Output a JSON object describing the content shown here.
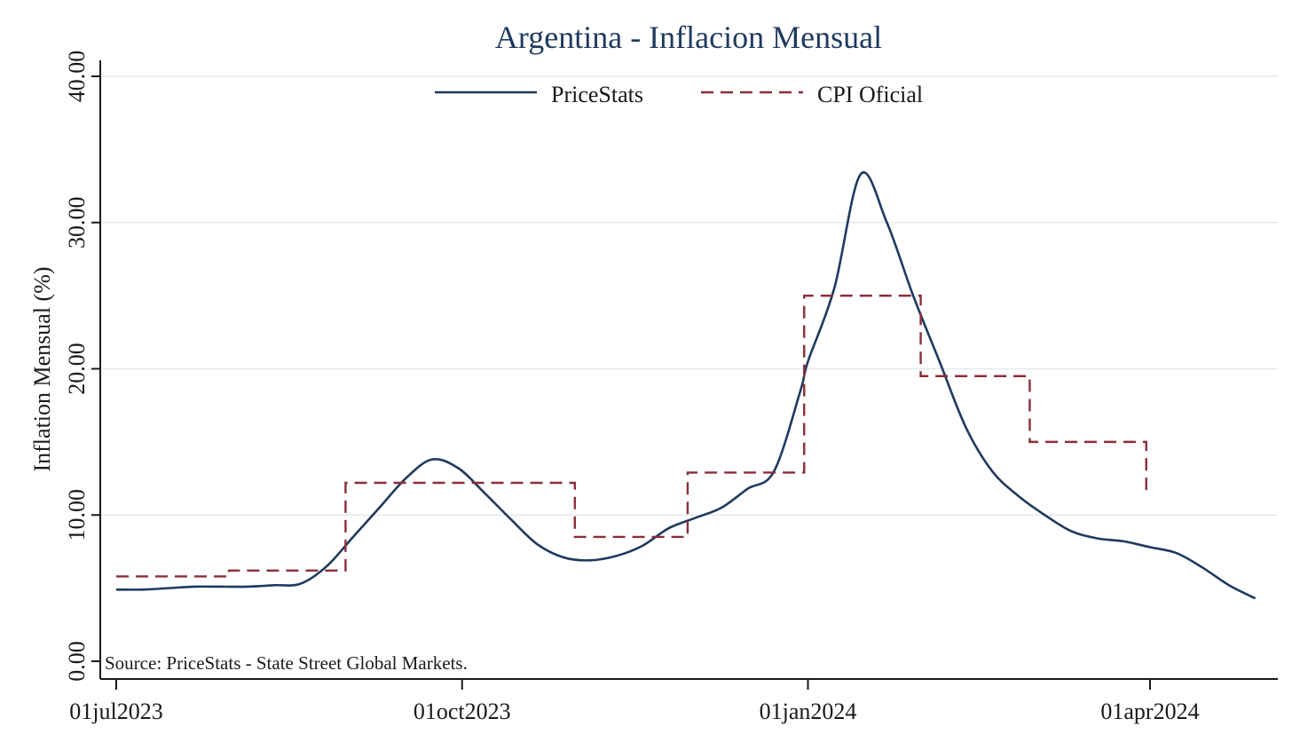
{
  "chart_data": {
    "type": "line",
    "title": "Argentina - Inflacion Mensual",
    "xlabel": "",
    "ylabel": "Inflation Mensual (%)",
    "ylim": [
      0,
      40
    ],
    "yticks": [
      "0.00",
      "10.00",
      "20.00",
      "30.00",
      "40.00"
    ],
    "xticks": [
      {
        "date": "2023-07-01",
        "label": "01jul2023"
      },
      {
        "date": "2023-10-01",
        "label": "01oct2023"
      },
      {
        "date": "2024-01-01",
        "label": "01jan2024"
      },
      {
        "date": "2024-04-01",
        "label": "01apr2024"
      }
    ],
    "xlim": [
      "2023-07-01",
      "2024-05-01"
    ],
    "grid": "horizontal",
    "legend": "top-center",
    "note": "Source: PriceStats - State Street Global Markets.",
    "series": [
      {
        "name": "PriceStats",
        "style": "solid",
        "color": "#1f3a5f",
        "points": [
          [
            "2023-07-01",
            4.9
          ],
          [
            "2023-07-08",
            4.9
          ],
          [
            "2023-07-15",
            5.0
          ],
          [
            "2023-07-22",
            5.1
          ],
          [
            "2023-07-29",
            5.1
          ],
          [
            "2023-08-05",
            5.1
          ],
          [
            "2023-08-12",
            5.2
          ],
          [
            "2023-08-19",
            5.3
          ],
          [
            "2023-08-26",
            6.5
          ],
          [
            "2023-09-02",
            8.5
          ],
          [
            "2023-09-09",
            10.5
          ],
          [
            "2023-09-16",
            12.5
          ],
          [
            "2023-09-23",
            13.8
          ],
          [
            "2023-09-30",
            13.2
          ],
          [
            "2023-10-07",
            11.5
          ],
          [
            "2023-10-14",
            9.7
          ],
          [
            "2023-10-21",
            8.0
          ],
          [
            "2023-10-28",
            7.1
          ],
          [
            "2023-11-04",
            6.9
          ],
          [
            "2023-11-11",
            7.2
          ],
          [
            "2023-11-18",
            7.9
          ],
          [
            "2023-11-25",
            9.1
          ],
          [
            "2023-12-02",
            9.8
          ],
          [
            "2023-12-09",
            10.5
          ],
          [
            "2023-12-16",
            11.8
          ],
          [
            "2023-12-23",
            13.0
          ],
          [
            "2023-12-30",
            18.5
          ],
          [
            "2024-01-01",
            20.5
          ],
          [
            "2024-01-08",
            25.5
          ],
          [
            "2024-01-15",
            33.3
          ],
          [
            "2024-01-22",
            30.0
          ],
          [
            "2024-01-29",
            25.0
          ],
          [
            "2024-02-05",
            20.5
          ],
          [
            "2024-02-12",
            16.0
          ],
          [
            "2024-02-19",
            13.0
          ],
          [
            "2024-02-26",
            11.3
          ],
          [
            "2024-03-04",
            10.0
          ],
          [
            "2024-03-11",
            8.9
          ],
          [
            "2024-03-18",
            8.4
          ],
          [
            "2024-03-25",
            8.2
          ],
          [
            "2024-04-01",
            7.8
          ],
          [
            "2024-04-08",
            7.4
          ],
          [
            "2024-04-15",
            6.4
          ],
          [
            "2024-04-22",
            5.2
          ],
          [
            "2024-04-29",
            4.3
          ]
        ]
      },
      {
        "name": "CPI Oficial",
        "style": "dashed",
        "color": "#8b2e3a",
        "steps": [
          {
            "start": "2023-07-01",
            "end": "2023-07-31",
            "value": 5.8
          },
          {
            "start": "2023-07-31",
            "end": "2023-08-31",
            "value": 6.2
          },
          {
            "start": "2023-08-31",
            "end": "2023-10-31",
            "value": 12.2
          },
          {
            "start": "2023-10-31",
            "end": "2023-11-30",
            "value": 8.5
          },
          {
            "start": "2023-11-30",
            "end": "2023-12-31",
            "value": 12.9
          },
          {
            "start": "2023-12-31",
            "end": "2024-01-31",
            "value": 25.0
          },
          {
            "start": "2024-01-31",
            "end": "2024-02-29",
            "value": 19.5
          },
          {
            "start": "2024-02-29",
            "end": "2024-03-31",
            "value": 15.0
          },
          {
            "start": "2024-03-31",
            "end": "2024-04-01",
            "value": 11.5
          }
        ]
      }
    ]
  }
}
